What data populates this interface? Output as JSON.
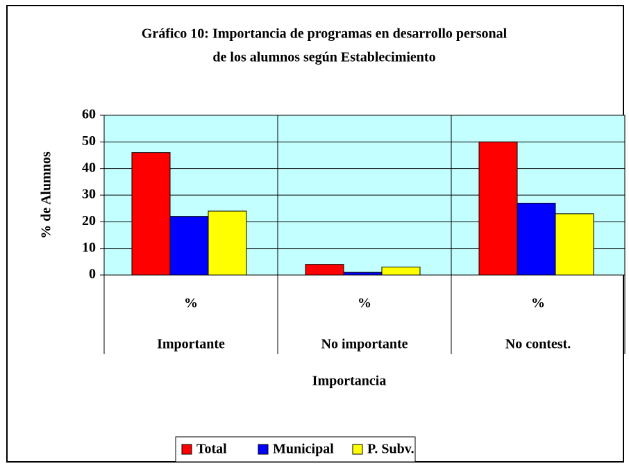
{
  "chart_data": {
    "type": "bar",
    "title": [
      "Gráfico 10: Importancia de programas en desarrollo personal",
      "de los alumnos según Establecimiento"
    ],
    "x_label": "Importancia",
    "y_label": "% de Alumnos",
    "subcategories": [
      "%",
      "%",
      "%"
    ],
    "categories": [
      "Importante",
      "No importante",
      "No contest."
    ],
    "series": [
      {
        "name": "Total",
        "color": "#ff0000",
        "values": [
          46,
          4,
          50
        ]
      },
      {
        "name": "Municipal",
        "color": "#0000ff",
        "values": [
          22,
          1,
          27
        ]
      },
      {
        "name": "P. Subv.",
        "color": "#ffff00",
        "values": [
          24,
          3,
          23
        ]
      }
    ],
    "ylim": [
      0,
      60
    ],
    "yticks": [
      0,
      10,
      20,
      30,
      40,
      50,
      60
    ],
    "grid": true,
    "plot_background": "#c4ffff",
    "legend": "bottom"
  }
}
